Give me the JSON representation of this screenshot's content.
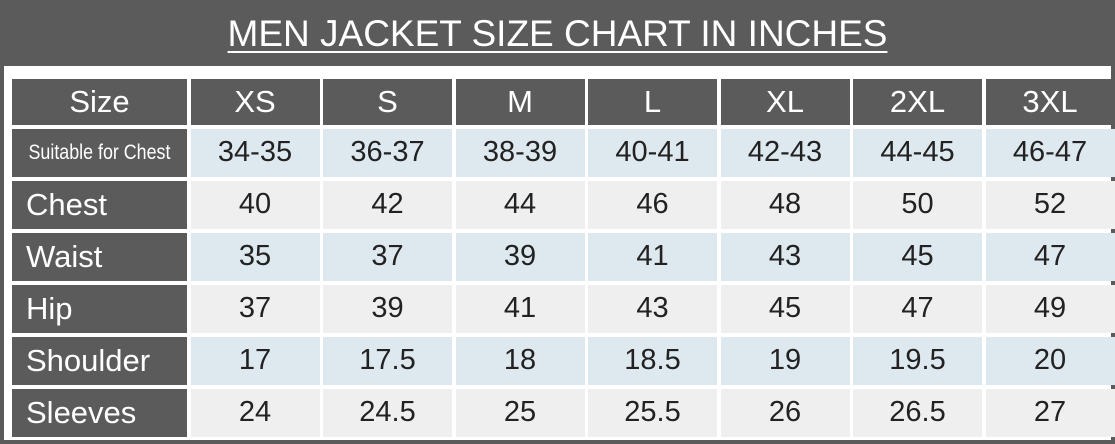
{
  "title": "MEN JACKET SIZE CHART IN INCHES",
  "table": {
    "header": [
      "Size",
      "XS",
      "S",
      "M",
      "L",
      "XL",
      "2XL",
      "3XL"
    ],
    "rows": [
      [
        "Suitable for Chest",
        "34-35",
        "36-37",
        "38-39",
        "40-41",
        "42-43",
        "44-45",
        "46-47"
      ],
      [
        "Chest",
        40,
        42,
        44,
        46,
        48,
        50,
        52
      ],
      [
        "Waist",
        35,
        37,
        39,
        41,
        43,
        45,
        47
      ],
      [
        "Hip",
        37,
        39,
        41,
        43,
        45,
        47,
        49
      ],
      [
        "Shoulder",
        17,
        17.5,
        18,
        18.5,
        19,
        19.5,
        20
      ],
      [
        "Sleeves",
        24,
        24.5,
        25,
        25.5,
        26,
        26.5,
        27
      ]
    ]
  }
}
